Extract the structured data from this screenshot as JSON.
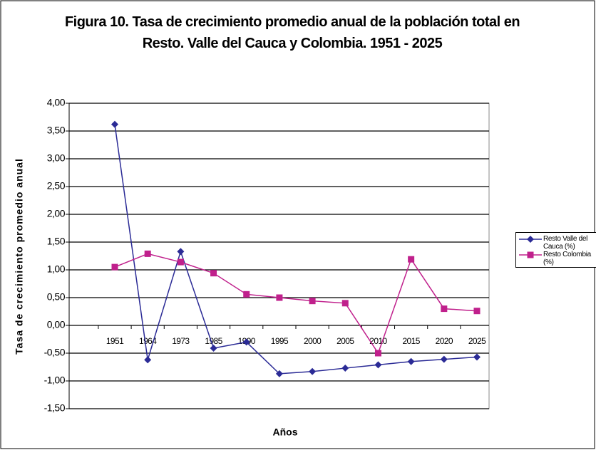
{
  "chart_data": {
    "type": "line",
    "title": "Figura 10. Tasa de crecimiento promedio anual de la población total en Resto. Valle del Cauca y Colombia. 1951 - 2025",
    "x_label": "Años",
    "y_label": "Tasa de crecimiento promedio anual",
    "categories": [
      "1951",
      "1964",
      "1973",
      "1985",
      "1990",
      "1995",
      "2000",
      "2005",
      "2010",
      "2015",
      "2020",
      "2025"
    ],
    "series": [
      {
        "name": "Resto Valle del Cauca (%)",
        "color": "#2b2b96",
        "marker": "diamond",
        "values": [
          3.62,
          -0.62,
          1.33,
          -0.41,
          -0.3,
          -0.87,
          -0.83,
          -0.77,
          -0.71,
          -0.65,
          -0.61,
          -0.57
        ]
      },
      {
        "name": "Resto Colombia (%)",
        "color": "#c0208c",
        "marker": "square",
        "values": [
          1.05,
          1.29,
          1.14,
          0.94,
          0.56,
          0.5,
          0.44,
          0.4,
          -0.5,
          1.19,
          0.3,
          0.26
        ]
      }
    ],
    "ylim": [
      -1.5,
      4
    ],
    "yticks": [
      {
        "value": -1.5,
        "label": "-1,50"
      },
      {
        "value": -1,
        "label": "-1,00"
      },
      {
        "value": -0.5,
        "label": "-0,50"
      },
      {
        "value": 0,
        "label": "0,00"
      },
      {
        "value": 0.5,
        "label": "0,50"
      },
      {
        "value": 1,
        "label": "1,00"
      },
      {
        "value": 1.5,
        "label": "1,50"
      },
      {
        "value": 2,
        "label": "2,00"
      },
      {
        "value": 2.5,
        "label": "2,50"
      },
      {
        "value": 3,
        "label": "3,00"
      },
      {
        "value": 3.5,
        "label": "3,50"
      },
      {
        "value": 4,
        "label": "4,00"
      }
    ],
    "grid": true,
    "legend": "right"
  }
}
